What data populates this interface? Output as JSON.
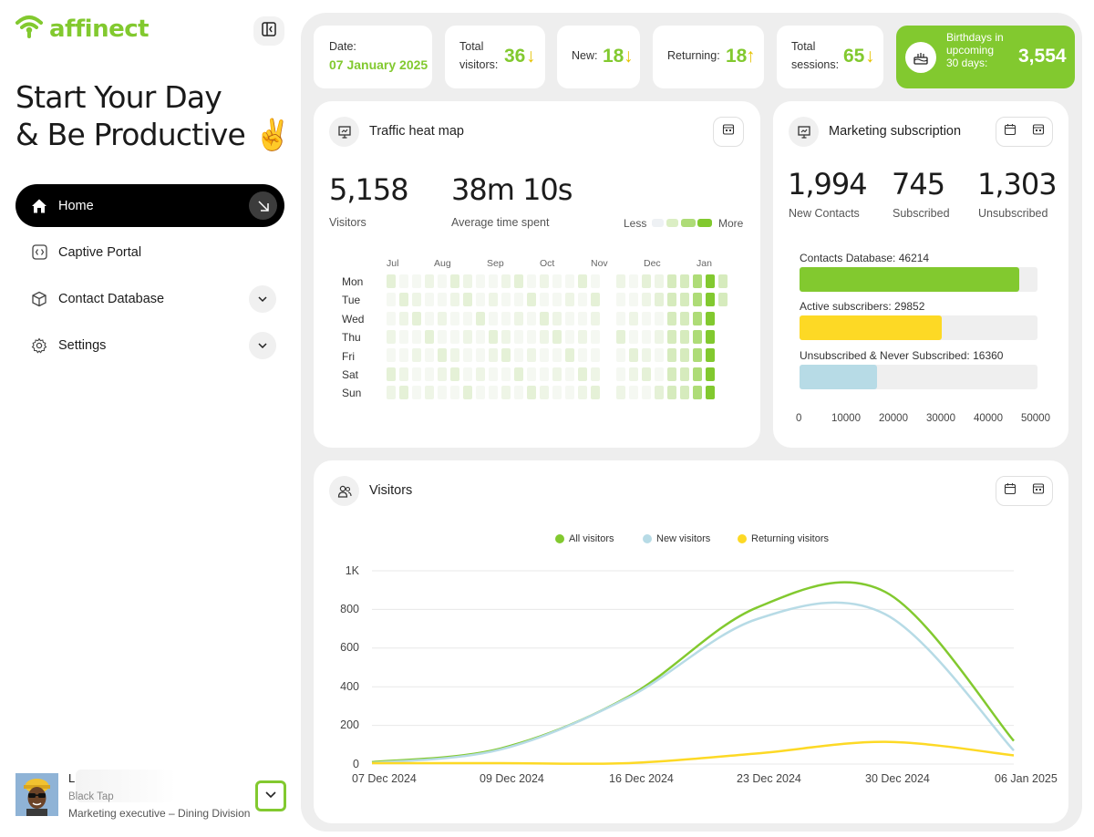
{
  "brand": {
    "name": "affinect",
    "accent": "#82c92f",
    "icon": "wifi-icon"
  },
  "headline": {
    "line1": "Start Your Day",
    "line2": "& Be Productive",
    "emoji": "✌️"
  },
  "nav": [
    {
      "label": "Home",
      "icon": "home-icon",
      "active": true
    },
    {
      "label": "Captive Portal",
      "icon": "code-icon"
    },
    {
      "label": "Contact Database",
      "icon": "cube-icon"
    },
    {
      "label": "Settings",
      "icon": "gear-icon"
    }
  ],
  "user": {
    "name": "L",
    "team": "Black Tap",
    "role": "Marketing executive – Dining Division"
  },
  "stats": {
    "date_label": "Date:",
    "date_value": "07 January 2025",
    "total_visitors_label1": "Total",
    "total_visitors_label2": "visitors:",
    "total_visitors": "36",
    "total_visitors_arrow": "↓",
    "new_label": "New:",
    "new_value": "18",
    "new_arrow": "↓",
    "returning_label": "Returning:",
    "returning_value": "18",
    "returning_arrow": "↑",
    "sessions_label1": "Total",
    "sessions_label2": "sessions:",
    "sessions_value": "65",
    "sessions_arrow": "↓",
    "birthdays_label1": "Birthdays in",
    "birthdays_label2": "upcoming",
    "birthdays_label3": "30 days:",
    "birthdays_value": "3,554"
  },
  "heatmap": {
    "title": "Traffic heat map",
    "visitors_value": "5,158",
    "visitors_label": "Visitors",
    "time_value": "38m 10s",
    "time_label": "Average time spent",
    "legend_less": "Less",
    "legend_more": "More",
    "months": [
      "Jul",
      "Aug",
      "Sep",
      "Oct",
      "Nov",
      "Dec",
      "Jan"
    ],
    "days": [
      "Mon",
      "Tue",
      "Wed",
      "Thu",
      "Fri",
      "Sat",
      "Sun"
    ]
  },
  "marketing": {
    "title": "Marketing subscription",
    "new_contacts_value": "1,994",
    "new_contacts_label": "New Contacts",
    "subscribed_value": "745",
    "subscribed_label": "Subscribed",
    "unsubscribed_value": "1,303",
    "unsubscribed_label": "Unsubscribed",
    "bars": [
      {
        "label": "Contacts Database: 46214",
        "value": 46214,
        "color": "#82c92f"
      },
      {
        "label": "Active subscribers: 29852",
        "value": 29852,
        "color": "#fdd925"
      },
      {
        "label": "Unsubscribed & Never Subscribed: 16360",
        "value": 16360,
        "color": "#b7dbe6"
      }
    ],
    "axis_max": 50000,
    "axis_ticks": [
      "0",
      "10000",
      "20000",
      "30000",
      "40000",
      "50000"
    ]
  },
  "visitors_chart": {
    "title": "Visitors",
    "legend": [
      {
        "name": "All visitors",
        "color": "#82c92f"
      },
      {
        "name": "New visitors",
        "color": "#b7dbe6"
      },
      {
        "name": "Returning visitors",
        "color": "#fdd925"
      }
    ],
    "y_ticks": [
      "1K",
      "800",
      "600",
      "400",
      "200",
      "0"
    ],
    "x_ticks": [
      "07 Dec 2024",
      "09 Dec 2024",
      "16 Dec 2024",
      "23 Dec 2024",
      "30 Dec 2024",
      "06 Jan 2025"
    ]
  },
  "chart_data": {
    "type": "line",
    "x": [
      "07 Dec 2024",
      "09 Dec 2024",
      "16 Dec 2024",
      "23 Dec 2024",
      "30 Dec 2024",
      "06 Jan 2025"
    ],
    "ylim": [
      0,
      1000
    ],
    "series": [
      {
        "name": "All visitors",
        "values": [
          10,
          80,
          350,
          810,
          890,
          120
        ]
      },
      {
        "name": "New visitors",
        "values": [
          5,
          75,
          345,
          750,
          775,
          70
        ]
      },
      {
        "name": "Returning visitors",
        "values": [
          5,
          5,
          5,
          55,
          115,
          45
        ]
      }
    ]
  }
}
